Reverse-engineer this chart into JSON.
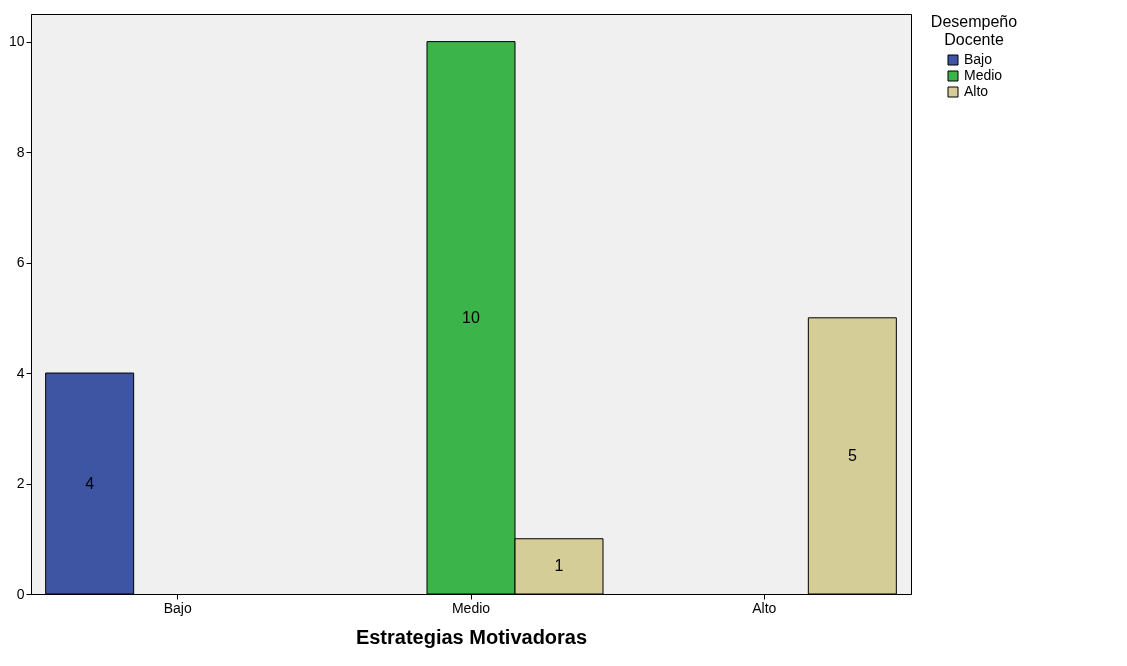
{
  "chart_data": {
    "type": "bar",
    "xlabel": "Estrategias Motivadoras",
    "legend_title": "Desempeño Docente",
    "categories": [
      "Bajo",
      "Medio",
      "Alto"
    ],
    "series": [
      {
        "name": "Bajo",
        "color": "#3e55a3",
        "values": [
          4,
          null,
          null
        ]
      },
      {
        "name": "Medio",
        "color": "#3bb54a",
        "values": [
          null,
          10,
          null
        ]
      },
      {
        "name": "Alto",
        "color": "#d4cd98",
        "values": [
          null,
          1,
          5
        ]
      }
    ],
    "ylim": [
      0,
      10.5
    ],
    "yticks": [
      0,
      2,
      4,
      6,
      8,
      10
    ],
    "grid": false,
    "legend": "top right",
    "data_labels": true
  }
}
